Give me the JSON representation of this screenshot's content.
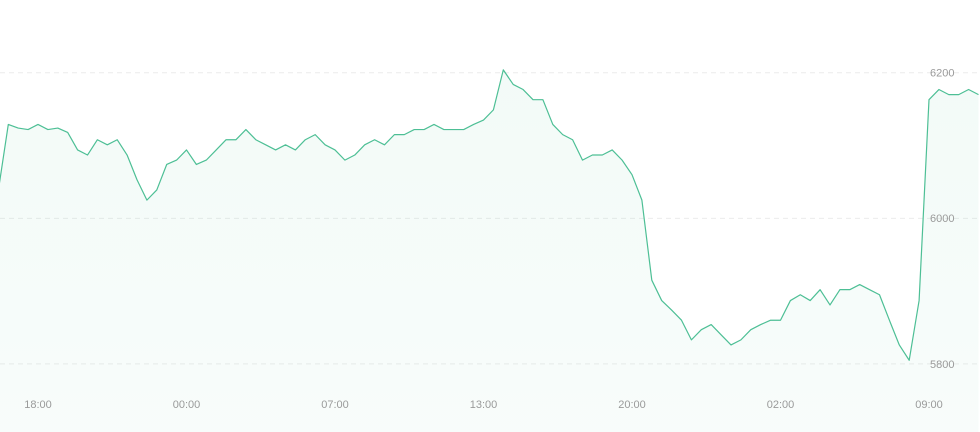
{
  "chart_data": {
    "type": "line",
    "categories": [
      null,
      null,
      null,
      null,
      "18:00",
      null,
      null,
      null,
      null,
      null,
      null,
      null,
      null,
      null,
      null,
      null,
      null,
      null,
      null,
      "00:00",
      null,
      null,
      null,
      null,
      null,
      null,
      null,
      null,
      null,
      null,
      null,
      null,
      null,
      null,
      "07:00",
      null,
      null,
      null,
      null,
      null,
      null,
      null,
      null,
      null,
      null,
      null,
      null,
      null,
      null,
      "13:00",
      null,
      null,
      null,
      null,
      null,
      null,
      null,
      null,
      null,
      null,
      null,
      null,
      null,
      null,
      "20:00",
      null,
      null,
      null,
      null,
      null,
      null,
      null,
      null,
      null,
      null,
      null,
      null,
      null,
      null,
      "02:00",
      null,
      null,
      null,
      null,
      null,
      null,
      null,
      null,
      null,
      null,
      null,
      null,
      null,
      null,
      "09:00",
      null,
      null,
      null,
      null,
      null
    ],
    "values": [
      6039,
      6129,
      6124,
      6122,
      6129,
      6122,
      6124,
      6118,
      6094,
      6087,
      6108,
      6101,
      6108,
      6087,
      6053,
      6025,
      6039,
      6074,
      6080,
      6094,
      6074,
      6080,
      6094,
      6108,
      6108,
      6122,
      6108,
      6101,
      6094,
      6101,
      6094,
      6108,
      6115,
      6101,
      6094,
      6080,
      6087,
      6101,
      6108,
      6101,
      6115,
      6115,
      6122,
      6122,
      6129,
      6122,
      6122,
      6122,
      6129,
      6135,
      6149,
      6204,
      6184,
      6177,
      6163,
      6163,
      6129,
      6115,
      6108,
      6080,
      6087,
      6087,
      6094,
      6080,
      6060,
      6025,
      5915,
      5887,
      5874,
      5860,
      5833,
      5847,
      5854,
      5840,
      5826,
      5833,
      5847,
      5854,
      5860,
      5860,
      5887,
      5895,
      5887,
      5902,
      5881,
      5902,
      5902,
      5909,
      5902,
      5895,
      5860,
      5826,
      5805,
      5887,
      6163,
      6177,
      6170,
      6170,
      6177,
      6170
    ],
    "color": "#4dbf95",
    "ylim": [
      5760,
      6300
    ],
    "yticks": [
      5800,
      6000,
      6200
    ],
    "grid": true
  }
}
